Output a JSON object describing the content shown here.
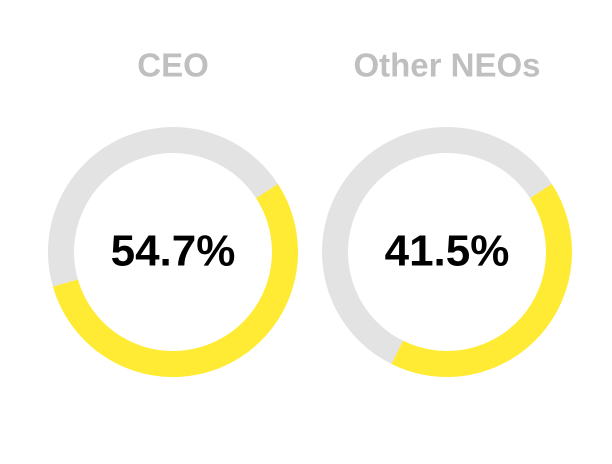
{
  "chart_data": [
    {
      "type": "donut",
      "title": "CEO",
      "values": [
        54.7,
        45.3
      ],
      "value_labels": [
        "54.7%",
        null
      ],
      "colors": [
        "#ffeb33",
        "#e3e3e3"
      ]
    },
    {
      "type": "donut",
      "title": "Other NEOs",
      "values": [
        41.5,
        58.5
      ],
      "value_labels": [
        "41.5%",
        null
      ],
      "colors": [
        "#ffeb33",
        "#e3e3e3"
      ]
    }
  ]
}
